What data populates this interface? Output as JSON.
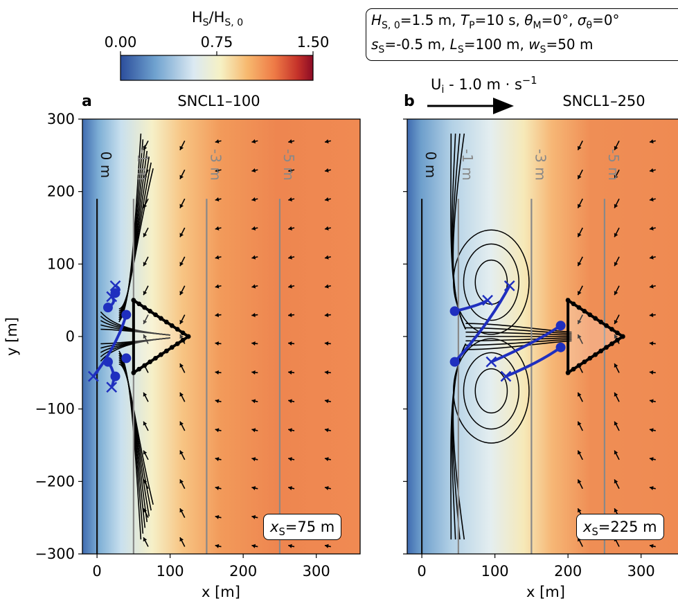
{
  "colorbar": {
    "title": "H_S/H_S,0",
    "ticks": [
      "0.00",
      "0.75",
      "1.50"
    ],
    "range": [
      0.0,
      1.5
    ],
    "colors": [
      "#2b4d9b",
      "#6fa2cf",
      "#dbe9f2",
      "#f6f1c4",
      "#f7b86e",
      "#ee7a46",
      "#c5322a",
      "#8b0b25"
    ]
  },
  "params": {
    "line1": "H_S,0=1.5 m, T_P=10 s, θ_M=0°, σ_θ=0°",
    "line2": "s_S=-0.5 m, L_S=100 m, w_S=50 m"
  },
  "current_key": {
    "label": "U_i - 1.0 m·s⁻¹",
    "magnitude": 1.0
  },
  "panels": [
    {
      "letter": "a",
      "title": "SNCL1–100",
      "inset": "x_S=75 m"
    },
    {
      "letter": "b",
      "title": "SNCL1–250",
      "inset": "x_S=225 m"
    }
  ],
  "axes": {
    "xlabel": "x [m]",
    "ylabel": "y [m]",
    "xticks": [
      0,
      100,
      200,
      300
    ],
    "yticks": [
      300,
      200,
      100,
      0,
      -100,
      -200,
      -300
    ],
    "xlim": [
      -20,
      360
    ],
    "ylim": [
      -300,
      300
    ]
  },
  "chart_data": {
    "type": "heatmap",
    "title": "",
    "xlabel": "x [m]",
    "ylabel": "y [m]",
    "xlim": [
      -20,
      360
    ],
    "ylim": [
      -300,
      300
    ],
    "colorbar_label": "H_S/H_S,0",
    "colorbar_range": [
      0.0,
      1.5
    ],
    "contour_labels": [
      "0 m",
      "-1 m",
      "-3 m",
      "-5 m"
    ],
    "contour_x": [
      0,
      50,
      150,
      250
    ],
    "panels": [
      {
        "name": "SNCL1–100",
        "shoal_x_start": 50,
        "shoal_apex_x": 125,
        "shoal_half_width": 50,
        "x_S": 75,
        "hs_ratio_profile": {
          "x": [
            -20,
            0,
            30,
            60,
            90,
            140,
            200,
            360
          ],
          "values": [
            0.05,
            0.2,
            0.4,
            0.75,
            0.9,
            1.1,
            1.15,
            1.15
          ]
        },
        "drifter_starts": [
          [
            15,
            40
          ],
          [
            25,
            60
          ],
          [
            40,
            30
          ],
          [
            15,
            -35
          ],
          [
            25,
            -55
          ],
          [
            40,
            -30
          ]
        ],
        "drifter_ends": [
          [
            20,
            55
          ],
          [
            25,
            70
          ],
          [
            -5,
            -55
          ],
          [
            20,
            -70
          ]
        ]
      },
      {
        "name": "SNCL1–250",
        "shoal_x_start": 200,
        "shoal_apex_x": 275,
        "shoal_half_width": 50,
        "x_S": 225,
        "hs_ratio_profile": {
          "x": [
            -20,
            0,
            40,
            80,
            120,
            170,
            230,
            360
          ],
          "values": [
            0.05,
            0.25,
            0.55,
            0.8,
            0.9,
            1.05,
            1.12,
            1.12
          ]
        },
        "drifter_starts": [
          [
            45,
            35
          ],
          [
            45,
            -35
          ],
          [
            190,
            15
          ],
          [
            190,
            -15
          ]
        ],
        "drifter_ends": [
          [
            90,
            50
          ],
          [
            120,
            70
          ],
          [
            95,
            -35
          ],
          [
            115,
            -55
          ]
        ]
      }
    ]
  }
}
